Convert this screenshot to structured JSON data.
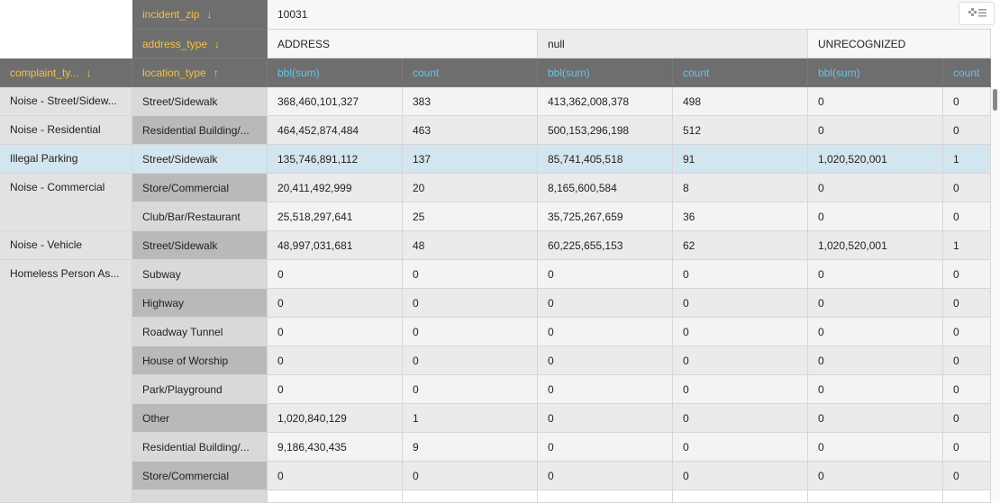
{
  "pivot": {
    "column_fields": [
      {
        "name": "incident_zip",
        "sort": "↓"
      },
      {
        "name": "address_type",
        "sort": "↓"
      }
    ],
    "row_fields": [
      {
        "name": "complaint_ty...",
        "sort": "↓"
      },
      {
        "name": "location_type",
        "sort": "↑"
      }
    ],
    "zip": "10031",
    "address_types": [
      "ADDRESS",
      "null",
      "UNRECOGNIZED"
    ],
    "measures": [
      "bbl(sum)",
      "count"
    ],
    "groups": [
      {
        "label": "Noise - Street/Sidew...",
        "rows": [
          {
            "location": "Street/Sidewalk",
            "values": [
              "368,460,101,327",
              "383",
              "413,362,008,378",
              "498",
              "0",
              "0"
            ]
          }
        ]
      },
      {
        "label": "Noise - Residential",
        "rows": [
          {
            "location": "Residential Building/...",
            "values": [
              "464,452,874,484",
              "463",
              "500,153,296,198",
              "512",
              "0",
              "0"
            ]
          }
        ]
      },
      {
        "label": "Illegal Parking",
        "rows": [
          {
            "location": "Street/Sidewalk",
            "values": [
              "135,746,891,112",
              "137",
              "85,741,405,518",
              "91",
              "1,020,520,001",
              "1"
            ]
          }
        ]
      },
      {
        "label": "Noise - Commercial",
        "rows": [
          {
            "location": "Store/Commercial",
            "values": [
              "20,411,492,999",
              "20",
              "8,165,600,584",
              "8",
              "0",
              "0"
            ]
          },
          {
            "location": "Club/Bar/Restaurant",
            "values": [
              "25,518,297,641",
              "25",
              "35,725,267,659",
              "36",
              "0",
              "0"
            ]
          }
        ]
      },
      {
        "label": "Noise - Vehicle",
        "rows": [
          {
            "location": "Street/Sidewalk",
            "values": [
              "48,997,031,681",
              "48",
              "60,225,655,153",
              "62",
              "1,020,520,001",
              "1"
            ]
          }
        ]
      },
      {
        "label": "Homeless Person As...",
        "rows": [
          {
            "location": "Subway",
            "values": [
              "0",
              "0",
              "0",
              "0",
              "0",
              "0"
            ]
          },
          {
            "location": "Highway",
            "values": [
              "0",
              "0",
              "0",
              "0",
              "0",
              "0"
            ]
          },
          {
            "location": "Roadway Tunnel",
            "values": [
              "0",
              "0",
              "0",
              "0",
              "0",
              "0"
            ]
          },
          {
            "location": "House of Worship",
            "values": [
              "0",
              "0",
              "0",
              "0",
              "0",
              "0"
            ]
          },
          {
            "location": "Park/Playground",
            "values": [
              "0",
              "0",
              "0",
              "0",
              "0",
              "0"
            ]
          },
          {
            "location": "Other",
            "values": [
              "1,020,840,129",
              "1",
              "0",
              "0",
              "0",
              "0"
            ]
          },
          {
            "location": "Residential Building/...",
            "values": [
              "9,186,430,435",
              "9",
              "0",
              "0",
              "0",
              "0"
            ]
          },
          {
            "location": "Store/Commercial",
            "values": [
              "0",
              "0",
              "0",
              "0",
              "0",
              "0"
            ]
          }
        ]
      }
    ]
  }
}
